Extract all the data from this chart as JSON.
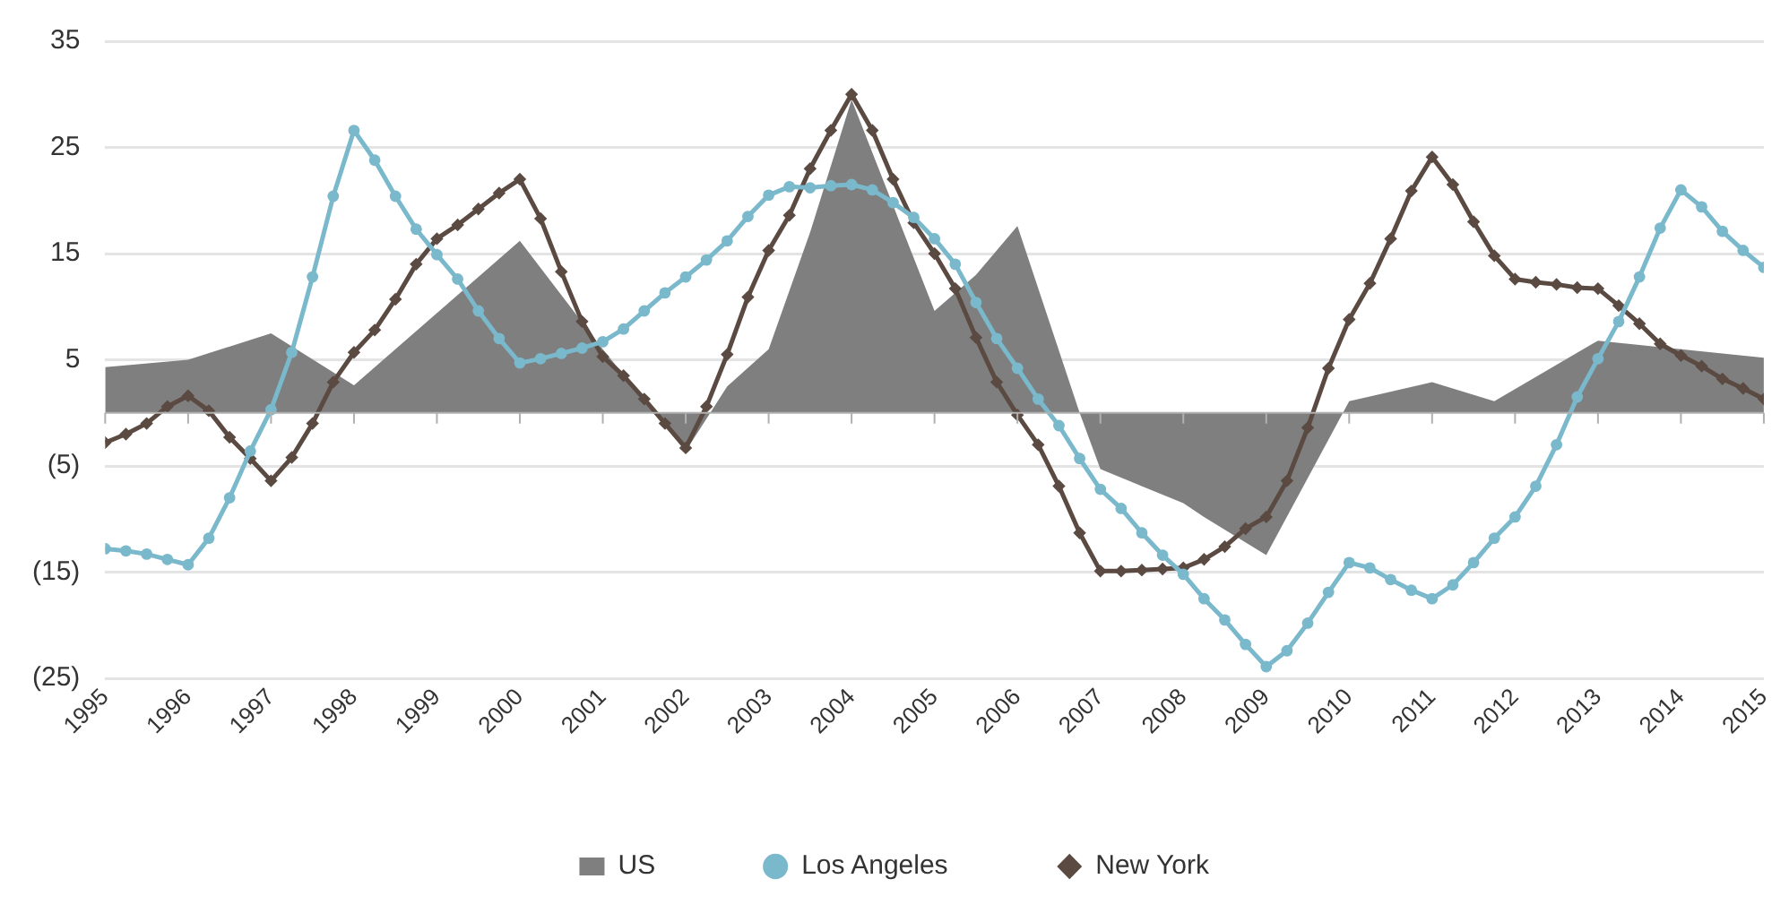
{
  "chart_data": {
    "type": "line",
    "x": [
      1995,
      1995.25,
      1995.5,
      1995.75,
      1996,
      1996.25,
      1996.5,
      1996.75,
      1997,
      1997.25,
      1997.5,
      1997.75,
      1998,
      1998.25,
      1998.5,
      1998.75,
      1999,
      1999.25,
      1999.5,
      1999.75,
      2000,
      2000.25,
      2000.5,
      2000.75,
      2001,
      2001.25,
      2001.5,
      2001.75,
      2002,
      2002.25,
      2002.5,
      2002.75,
      2003,
      2003.25,
      2003.5,
      2003.75,
      2004,
      2004.25,
      2004.5,
      2004.75,
      2005,
      2005.25,
      2005.5,
      2005.75,
      2006,
      2006.25,
      2006.5,
      2006.75,
      2007,
      2007.25,
      2007.5,
      2007.75,
      2008,
      2008.25,
      2008.5,
      2008.75,
      2009,
      2009.25,
      2009.5,
      2009.75,
      2010,
      2010.25,
      2010.5,
      2010.75,
      2011,
      2011.25,
      2011.5,
      2011.75,
      2012,
      2012.25,
      2012.5,
      2012.75,
      2013,
      2013.25,
      2013.5,
      2013.75,
      2014,
      2014.25,
      2014.5,
      2014.75,
      2015
    ],
    "series": [
      {
        "name": "US",
        "type": "area",
        "color": "#7f7f7f",
        "marker": "none",
        "x": [
          1995,
          1996,
          1997,
          1998,
          2000,
          2001,
          2002,
          2002.5,
          2003,
          2003.5,
          2004,
          2005,
          2005.5,
          2006,
          2006.75,
          2007,
          2008,
          2008.25,
          2009,
          2010,
          2011,
          2011.75,
          2013,
          2014,
          2015
        ],
        "values": [
          4.3,
          5.0,
          7.5,
          2.6,
          16.2,
          6.0,
          -3.6,
          2.5,
          6.0,
          17,
          29.5,
          9.6,
          13,
          17.6,
          0,
          -5.3,
          -8.5,
          -9.8,
          -13.4,
          1.1,
          2.9,
          1.1,
          6.8,
          6.0,
          5.2
        ]
      },
      {
        "name": "Los Angeles",
        "type": "line",
        "color": "#7ab8cb",
        "marker": "circle",
        "values": [
          -12.8,
          -13.0,
          -13.3,
          -13.8,
          -14.3,
          -11.8,
          -8.0,
          -3.6,
          0.3,
          5.7,
          12.8,
          20.4,
          26.6,
          23.8,
          20.4,
          17.3,
          14.9,
          12.6,
          9.6,
          7.0,
          4.7,
          5.1,
          5.6,
          6.1,
          6.7,
          7.9,
          9.6,
          11.3,
          12.8,
          14.4,
          16.2,
          18.5,
          20.5,
          21.3,
          21.2,
          21.4,
          21.5,
          21.0,
          19.8,
          18.4,
          16.4,
          14.0,
          10.4,
          7.0,
          4.2,
          1.3,
          -1.2,
          -4.3,
          -7.2,
          -9.0,
          -11.3,
          -13.4,
          -15.2,
          -17.5,
          -19.5,
          -21.8,
          -23.9,
          -22.4,
          -19.8,
          -16.9,
          -14.1,
          -14.6,
          -15.7,
          -16.7,
          -17.5,
          -16.2,
          -14.1,
          -11.8,
          -9.8,
          -6.9,
          -3.0,
          1.5,
          5.1,
          8.6,
          12.8,
          17.4,
          21.0,
          19.4,
          17.1,
          15.3,
          13.7
        ]
      },
      {
        "name": "New York",
        "type": "line",
        "color": "#5a4a42",
        "marker": "diamond",
        "values": [
          -2.8,
          -2.0,
          -1.0,
          0.6,
          1.6,
          0.2,
          -2.3,
          -4.3,
          -6.4,
          -4.2,
          -1.0,
          2.9,
          5.7,
          7.8,
          10.7,
          14.0,
          16.4,
          17.7,
          19.2,
          20.7,
          22.0,
          18.3,
          13.3,
          8.6,
          5.3,
          3.5,
          1.3,
          -1.0,
          -3.3,
          0.6,
          5.5,
          10.9,
          15.3,
          18.6,
          23.0,
          26.6,
          30.0,
          26.6,
          22.0,
          17.9,
          15.0,
          11.7,
          7.1,
          2.9,
          -0.2,
          -3.0,
          -6.9,
          -11.3,
          -14.9,
          -14.9,
          -14.8,
          -14.7,
          -14.6,
          -13.8,
          -12.6,
          -10.9,
          -9.8,
          -6.4,
          -1.4,
          4.2,
          8.8,
          12.2,
          16.4,
          20.9,
          24.1,
          21.5,
          18.0,
          14.8,
          12.6,
          12.3,
          12.1,
          11.8,
          11.7,
          10.1,
          8.4,
          6.5,
          5.4,
          4.4,
          3.2,
          2.3,
          1.3
        ]
      }
    ],
    "xlim": [
      1995,
      2015
    ],
    "xticks": [
      1995,
      1996,
      1997,
      1998,
      1999,
      2000,
      2001,
      2002,
      2003,
      2004,
      2005,
      2006,
      2007,
      2008,
      2009,
      2010,
      2011,
      2012,
      2013,
      2014,
      2015
    ],
    "ylim": [
      -25,
      35
    ],
    "yticks": [
      {
        "value": -25,
        "label": "(25)"
      },
      {
        "value": -15,
        "label": "(15)"
      },
      {
        "value": -5,
        "label": "(5)"
      },
      5,
      15,
      25,
      35
    ],
    "grid": "y",
    "legend": "bottom",
    "line_style": "solid"
  }
}
